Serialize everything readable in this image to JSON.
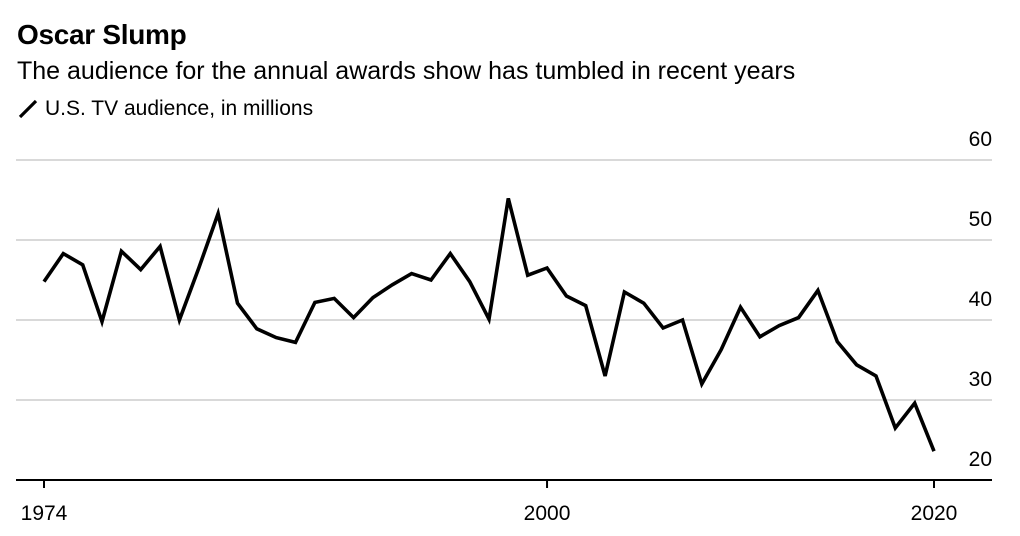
{
  "title": "Oscar Slump",
  "subtitle": "The audience for the annual awards show has tumbled in recent years",
  "legend": {
    "label": "U.S. TV audience, in millions",
    "color": "#000000"
  },
  "chart_data": {
    "type": "line",
    "title": "Oscar Slump",
    "subtitle": "The audience for the annual awards show has tumbled in recent years",
    "xlabel": "",
    "ylabel": "",
    "xlim": [
      1974,
      2020
    ],
    "ylim": [
      20,
      60
    ],
    "xticks": [
      1974,
      2000,
      2020
    ],
    "yticks": [
      20,
      30,
      40,
      50,
      60
    ],
    "grid": true,
    "legend_position": "top-left",
    "series": [
      {
        "name": "U.S. TV audience, in millions",
        "color": "#000000",
        "x": [
          1974,
          1975,
          1976,
          1977,
          1978,
          1979,
          1980,
          1981,
          1982,
          1983,
          1984,
          1985,
          1986,
          1987,
          1988,
          1989,
          1990,
          1991,
          1992,
          1993,
          1994,
          1995,
          1996,
          1997,
          1998,
          1999,
          2000,
          2001,
          2002,
          2003,
          2004,
          2005,
          2006,
          2007,
          2008,
          2009,
          2010,
          2011,
          2012,
          2013,
          2014,
          2015,
          2016,
          2017,
          2018,
          2019,
          2020
        ],
        "y": [
          44.8,
          48.3,
          46.9,
          39.8,
          48.6,
          46.3,
          49.2,
          40.0,
          46.5,
          53.3,
          42.1,
          38.9,
          37.8,
          37.2,
          42.2,
          42.7,
          40.3,
          42.8,
          44.4,
          45.8,
          45.0,
          48.3,
          44.8,
          40.1,
          55.2,
          45.6,
          46.5,
          43.0,
          41.8,
          33.0,
          43.5,
          42.1,
          39.0,
          40.0,
          32.0,
          36.3,
          41.6,
          37.9,
          39.3,
          40.3,
          43.7,
          37.3,
          34.4,
          33.0,
          26.5,
          29.6,
          23.6
        ]
      }
    ]
  }
}
